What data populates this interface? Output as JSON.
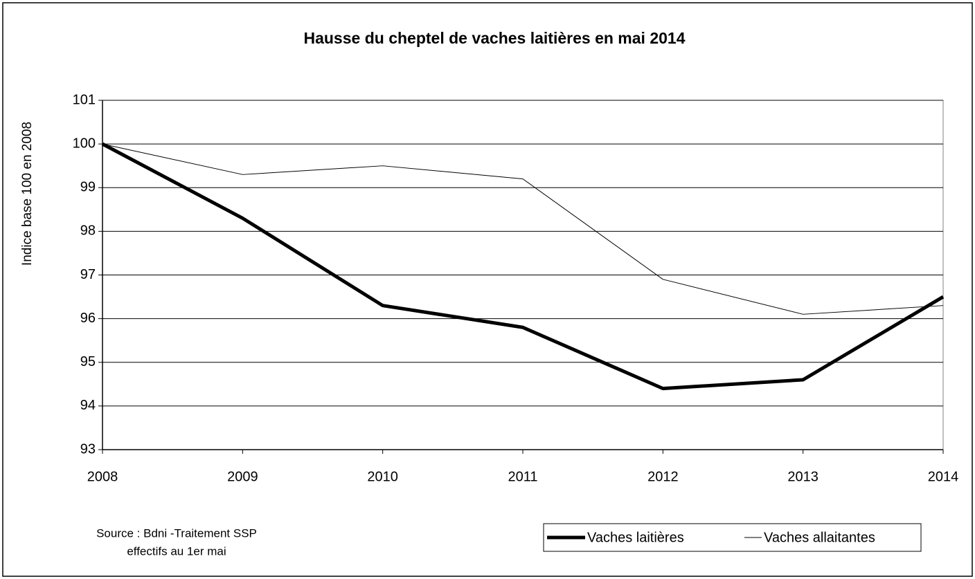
{
  "chart_data": {
    "type": "line",
    "title": "Hausse du cheptel de vaches laitières en mai 2014",
    "ylabel": "Indice base 100 en 2008",
    "categories": [
      "2008",
      "2009",
      "2010",
      "2011",
      "2012",
      "2013",
      "2014"
    ],
    "series": [
      {
        "name": "Vaches laitières",
        "color": "#000000",
        "line_width": 5,
        "values": [
          100,
          98.3,
          96.3,
          95.8,
          94.4,
          94.6,
          96.5
        ]
      },
      {
        "name": "Vaches allaitantes",
        "color": "#000000",
        "line_width": 1,
        "values": [
          100,
          99.3,
          99.5,
          99.2,
          96.9,
          96.1,
          96.3
        ]
      }
    ],
    "ylim": [
      93,
      101
    ],
    "yticks": [
      93,
      94,
      95,
      96,
      97,
      98,
      99,
      100,
      101
    ],
    "grid": true,
    "source": [
      "Source : Bdni -Traitement SSP",
      "effectifs au 1er mai"
    ]
  }
}
